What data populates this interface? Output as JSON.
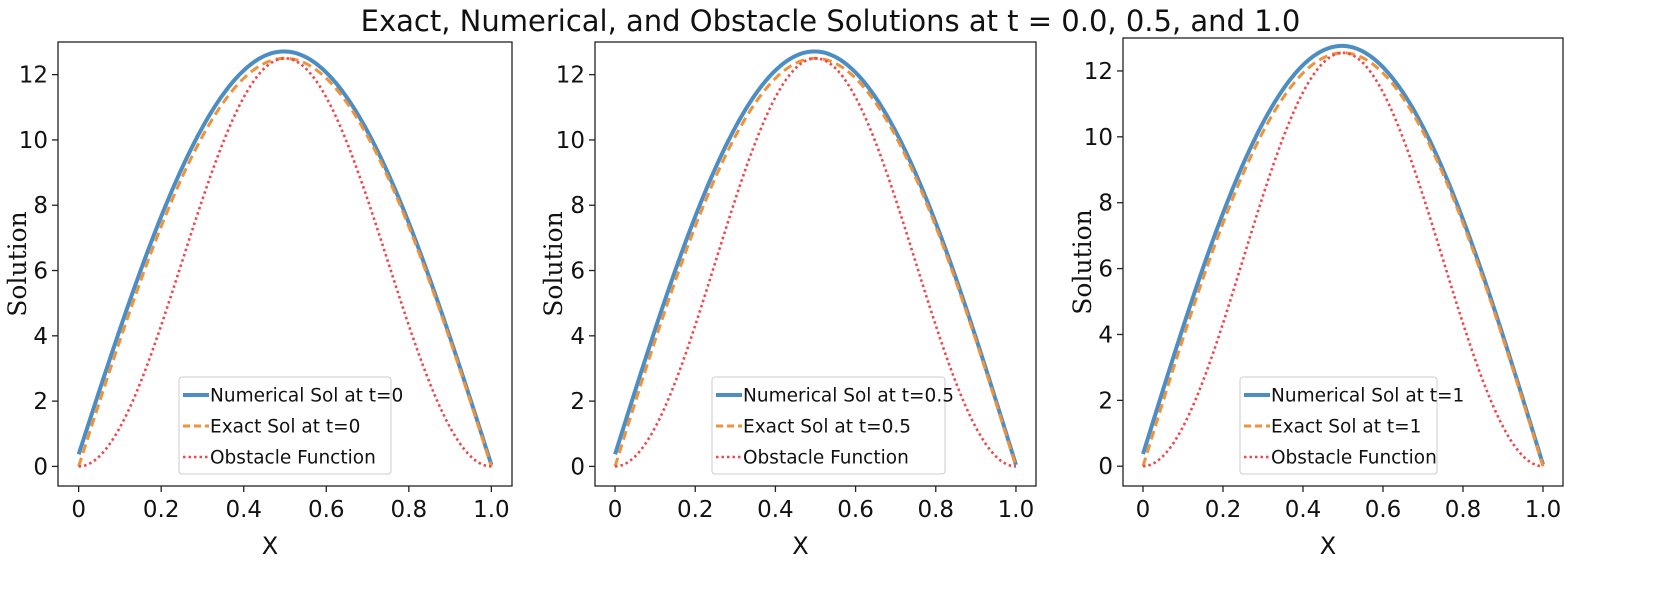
{
  "title": "Exact, Numerical, and Obstacle Solutions at t = 0.0, 0.5, and 1.0",
  "colors": {
    "numerical": "#4c8ec4",
    "exact": "#f0923a",
    "obstacle": "#f0474a",
    "axis": "#222222"
  },
  "chart_data": [
    {
      "type": "line",
      "xlabel": "X",
      "ylabel": "Solution",
      "xlim": [
        -0.05,
        1.05
      ],
      "ylim": [
        -0.6,
        13.0
      ],
      "xticks": [
        0,
        0.2,
        0.4,
        0.6,
        0.8,
        1.0
      ],
      "xtick_labels": [
        "0",
        "0.2",
        "0.4",
        "0.6",
        "0.8",
        "1.0"
      ],
      "yticks": [
        0,
        2,
        4,
        6,
        8,
        10,
        12
      ],
      "ytick_labels": [
        "0",
        "2",
        "4",
        "6",
        "8",
        "10",
        "12"
      ],
      "legend_position": "lower-center",
      "series": [
        {
          "name": "Numerical Sol at t=0",
          "style": "solid",
          "boundary": [
            0.37,
            0.05
          ]
        },
        {
          "name": "Exact Sol at t=0",
          "style": "dashed",
          "boundary": [
            0.0,
            0.0
          ]
        },
        {
          "name": "Obstacle Function",
          "style": "dotted",
          "boundary": [
            0.0,
            0.0
          ]
        }
      ],
      "peak": {
        "x": 0.5,
        "y": 12.5
      }
    },
    {
      "type": "line",
      "xlabel": "X",
      "ylabel": "Solution",
      "xlim": [
        -0.05,
        1.05
      ],
      "ylim": [
        -0.6,
        13.0
      ],
      "xticks": [
        0,
        0.2,
        0.4,
        0.6,
        0.8,
        1.0
      ],
      "xtick_labels": [
        "0",
        "0.2",
        "0.4",
        "0.6",
        "0.8",
        "1.0"
      ],
      "yticks": [
        0,
        2,
        4,
        6,
        8,
        10,
        12
      ],
      "ytick_labels": [
        "0",
        "2",
        "4",
        "6",
        "8",
        "10",
        "12"
      ],
      "legend_position": "lower-center",
      "series": [
        {
          "name": "Numerical Sol at t=0.5",
          "style": "solid",
          "boundary": [
            0.37,
            0.05
          ]
        },
        {
          "name": "Exact Sol at t=0.5",
          "style": "dashed",
          "boundary": [
            0.0,
            0.0
          ]
        },
        {
          "name": "Obstacle Function",
          "style": "dotted",
          "boundary": [
            0.0,
            0.0
          ]
        }
      ],
      "peak": {
        "x": 0.5,
        "y": 12.5
      }
    },
    {
      "type": "line",
      "xlabel": "X",
      "ylabel": "Solution",
      "xlim": [
        -0.05,
        1.05
      ],
      "ylim": [
        -0.6,
        13.0
      ],
      "xticks": [
        0,
        0.2,
        0.4,
        0.6,
        0.8,
        1.0
      ],
      "xtick_labels": [
        "0",
        "0.2",
        "0.4",
        "0.6",
        "0.8",
        "1.0"
      ],
      "yticks": [
        0,
        2,
        4,
        6,
        8,
        10,
        12
      ],
      "ytick_labels": [
        "0",
        "2",
        "4",
        "6",
        "8",
        "10",
        "12"
      ],
      "legend_position": "lower-center",
      "series": [
        {
          "name": "Numerical Sol at t=1",
          "style": "solid",
          "boundary": [
            0.37,
            0.05
          ]
        },
        {
          "name": "Exact Sol at t=1",
          "style": "dashed",
          "boundary": [
            0.0,
            0.0
          ]
        },
        {
          "name": "Obstacle Function",
          "style": "dotted",
          "boundary": [
            0.0,
            0.0
          ]
        }
      ],
      "peak": {
        "x": 0.5,
        "y": 12.55
      }
    }
  ]
}
